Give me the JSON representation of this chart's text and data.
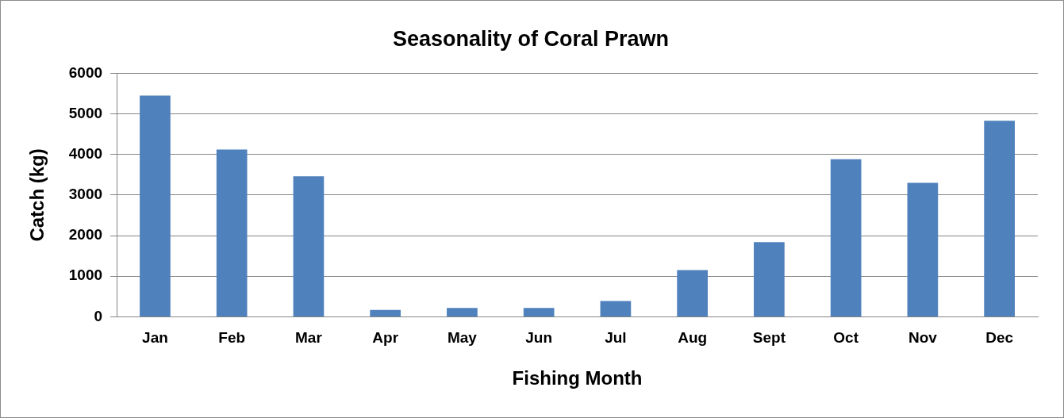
{
  "chart_data": {
    "type": "bar",
    "title": "Seasonality of Coral Prawn",
    "xlabel": "Fishing Month",
    "ylabel": "Catch (kg)",
    "categories": [
      "Jan",
      "Feb",
      "Mar",
      "Apr",
      "May",
      "Jun",
      "Jul",
      "Aug",
      "Sept",
      "Oct",
      "Nov",
      "Dec"
    ],
    "values": [
      5450,
      4120,
      3460,
      170,
      220,
      220,
      390,
      1150,
      1840,
      3880,
      3300,
      4830
    ],
    "color": "#4f81bd",
    "ylim": [
      0,
      6000
    ],
    "yticks": [
      0,
      1000,
      2000,
      3000,
      4000,
      5000,
      6000
    ],
    "grid": "y",
    "legend": false
  }
}
